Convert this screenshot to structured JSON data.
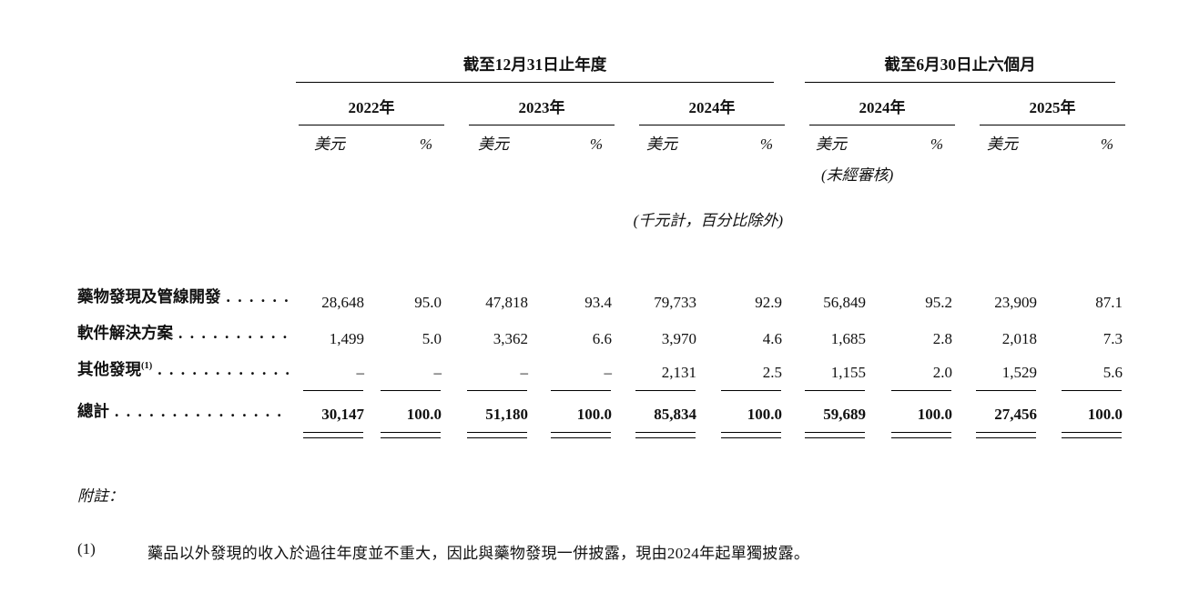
{
  "table": {
    "group1_title": "截至12月31日止年度",
    "group2_title": "截至6月30日止六個月",
    "years": [
      "2022年",
      "2023年",
      "2024年",
      "2024年",
      "2025年"
    ],
    "unit_usd": "美元",
    "unit_pct": "%",
    "unaudited": "(未經審核)",
    "scale_note": "(千元計，百分比除外)",
    "rows": [
      {
        "label": "藥物發現及管線開發",
        "values": [
          "28,648",
          "95.0",
          "47,818",
          "93.4",
          "79,733",
          "92.9",
          "56,849",
          "95.2",
          "23,909",
          "87.1"
        ]
      },
      {
        "label": "軟件解決方案",
        "values": [
          "1,499",
          "5.0",
          "3,362",
          "6.6",
          "3,970",
          "4.6",
          "1,685",
          "2.8",
          "2,018",
          "7.3"
        ]
      },
      {
        "label": "其他發現",
        "sup": "(1)",
        "values": [
          "–",
          "–",
          "–",
          "–",
          "2,131",
          "2.5",
          "1,155",
          "2.0",
          "1,529",
          "5.6"
        ]
      }
    ],
    "total": {
      "label": "總計",
      "values": [
        "30,147",
        "100.0",
        "51,180",
        "100.0",
        "85,834",
        "100.0",
        "59,689",
        "100.0",
        "27,456",
        "100.0"
      ]
    }
  },
  "notes": {
    "heading": "附註：",
    "items": [
      {
        "marker": "(1)",
        "text": "藥品以外發現的收入於過往年度並不重大，因此與藥物發現一併披露，現由2024年起單獨披露。"
      }
    ]
  }
}
